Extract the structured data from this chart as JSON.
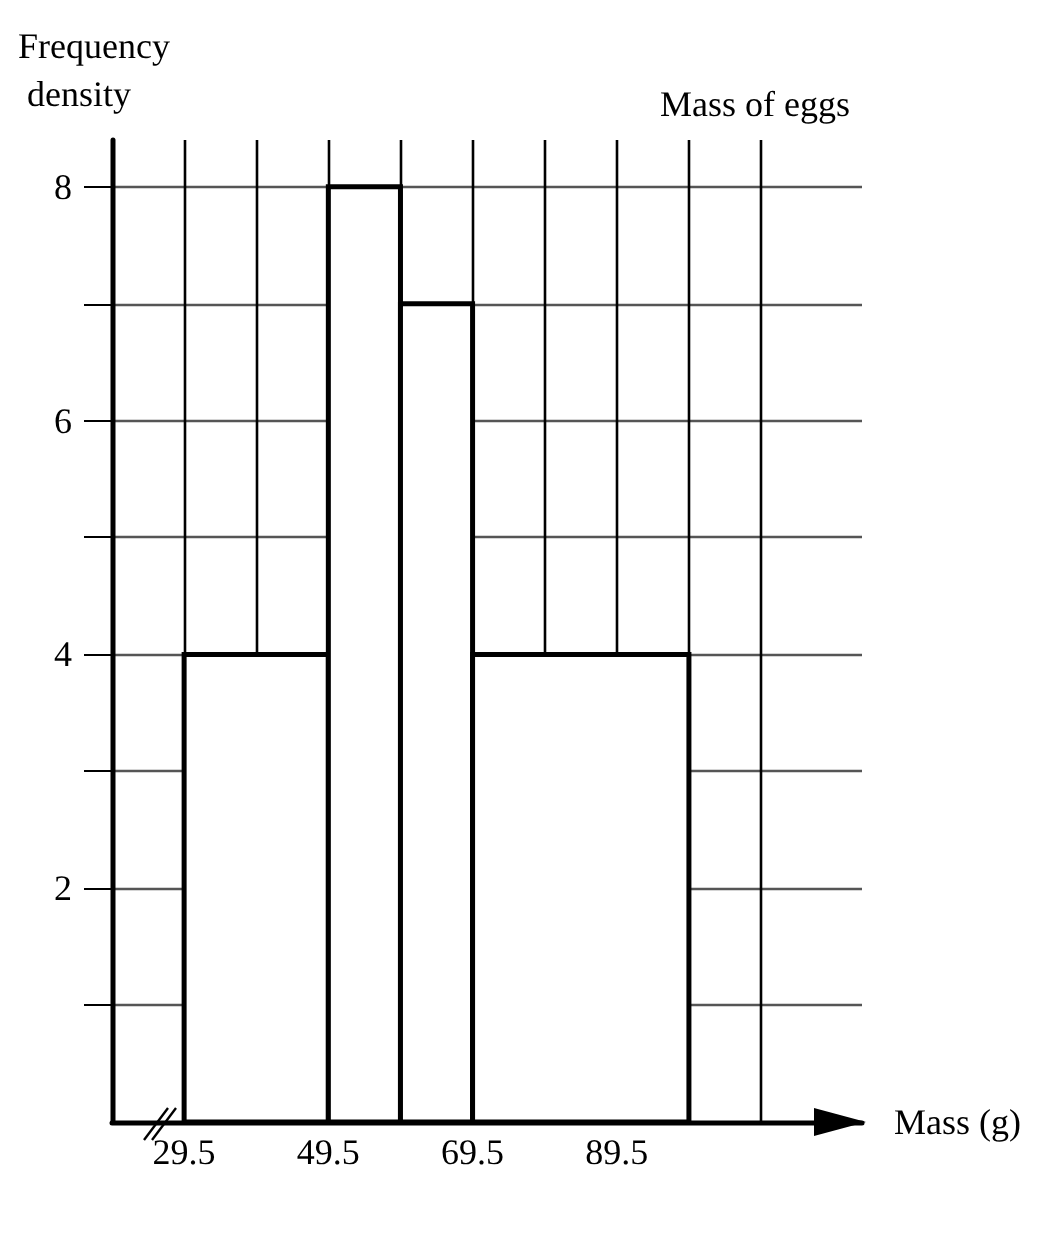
{
  "chart_data": {
    "type": "histogram",
    "title": "Mass of eggs",
    "xlabel": "Mass (g)",
    "ylabel": "Frequency density",
    "bins": [
      29.5,
      49.5,
      59.5,
      69.5,
      99.5
    ],
    "values": [
      4,
      8,
      7,
      4
    ],
    "color": "#ffffff",
    "xlim": [
      19.5,
      123.5
    ],
    "xticks": [
      29.5,
      {
        "value": 39.5,
        "label": null
      },
      49.5,
      {
        "value": 59.5,
        "label": null
      },
      69.5,
      {
        "value": 79.5,
        "label": null
      },
      89.5,
      {
        "value": 99.5,
        "label": null
      },
      {
        "value": 109.5,
        "label": null
      }
    ],
    "ylim": [
      0,
      8.4
    ],
    "yticks": [
      {
        "value": 1,
        "label": null
      },
      2,
      {
        "value": 3,
        "label": null
      },
      4,
      {
        "value": 5,
        "label": null
      },
      6,
      {
        "value": 7,
        "label": null
      },
      8
    ],
    "grid": true
  }
}
